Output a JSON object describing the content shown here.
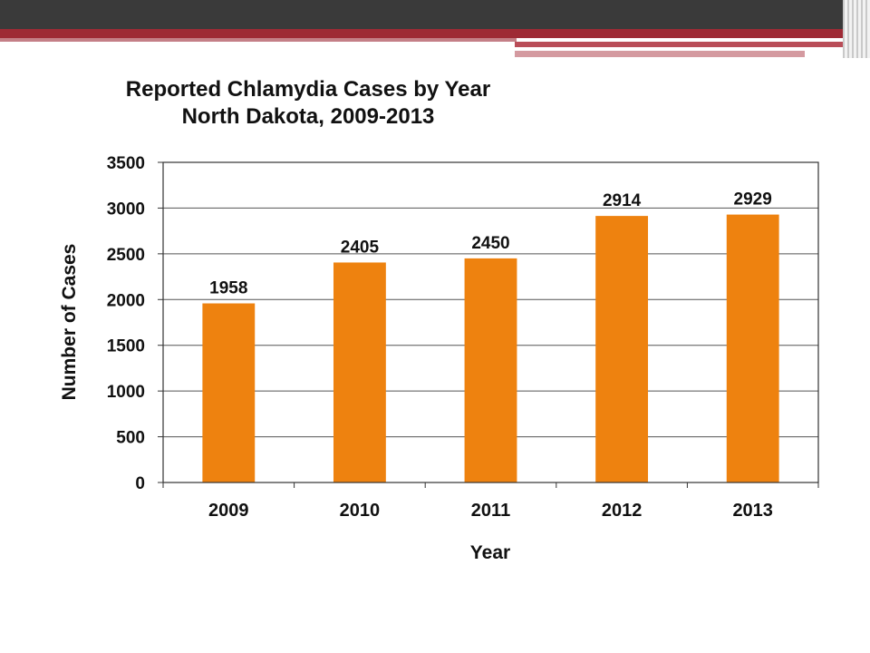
{
  "chart_data": {
    "type": "bar",
    "title": "Reported Chlamydia Cases by Year",
    "subtitle": "North Dakota, 2009-2013",
    "xlabel": "Year",
    "ylabel": "Number of Cases",
    "categories": [
      "2009",
      "2010",
      "2011",
      "2012",
      "2013"
    ],
    "values": [
      1958,
      2405,
      2450,
      2914,
      2929
    ],
    "data_labels": [
      "1958",
      "2405",
      "2450",
      "2914",
      "2929"
    ],
    "ylim": [
      0,
      3500
    ],
    "yticks": [
      0,
      500,
      1000,
      1500,
      2000,
      2500,
      3000,
      3500
    ],
    "ytick_labels": [
      "0",
      "500",
      "1000",
      "1500",
      "2000",
      "2500",
      "3000",
      "3500"
    ],
    "grid": true,
    "legend": "none",
    "bar_color": "#EE820F"
  }
}
